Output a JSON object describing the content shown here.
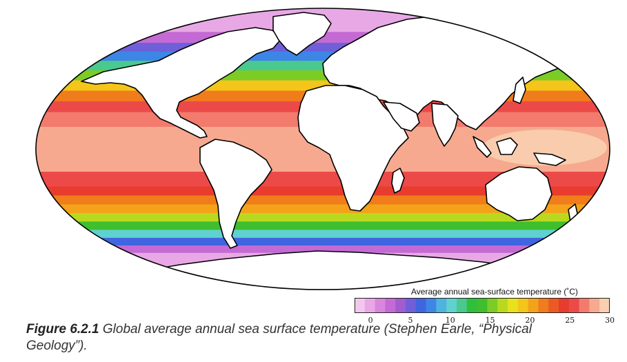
{
  "map": {
    "projection": "mollweide",
    "ocean_bands": [
      {
        "from": -90,
        "to": -66,
        "value": 0
      },
      {
        "from": -66,
        "to": -60,
        "value": 0
      },
      {
        "from": -60,
        "to": -55,
        "value": 3
      },
      {
        "from": -55,
        "to": -50,
        "value": 6
      },
      {
        "from": -50,
        "to": -45,
        "value": 10
      },
      {
        "from": -45,
        "to": -40,
        "value": 14
      },
      {
        "from": -40,
        "to": -35,
        "value": 17
      },
      {
        "from": -35,
        "to": -30,
        "value": 20
      },
      {
        "from": -30,
        "to": -25,
        "value": 22
      },
      {
        "from": -25,
        "to": -20,
        "value": 24
      },
      {
        "from": -20,
        "to": -12,
        "value": 26
      },
      {
        "from": -12,
        "to": 12,
        "value": 28
      },
      {
        "from": 12,
        "to": 20,
        "value": 27
      },
      {
        "from": 20,
        "to": 26,
        "value": 25
      },
      {
        "from": 26,
        "to": 32,
        "value": 22
      },
      {
        "from": 32,
        "to": 38,
        "value": 19
      },
      {
        "from": 38,
        "to": 44,
        "value": 15
      },
      {
        "from": 44,
        "to": 50,
        "value": 11
      },
      {
        "from": 50,
        "to": 56,
        "value": 8
      },
      {
        "from": 56,
        "to": 62,
        "value": 5
      },
      {
        "from": 62,
        "to": 70,
        "value": 2
      },
      {
        "from": 70,
        "to": 90,
        "value": 0
      }
    ],
    "warm_pool_value": 29,
    "land_color": "#ffffff"
  },
  "legend": {
    "title": "Average annual sea-surface temperature (˚C)",
    "min": -2,
    "max": 30,
    "ticks": [
      "0",
      "5",
      "10",
      "15",
      "20",
      "25",
      "30"
    ],
    "tick_values": [
      0,
      5,
      10,
      15,
      20,
      25,
      30
    ],
    "colors": [
      "#f2c8ee",
      "#e8a8e6",
      "#d986dd",
      "#c46ad4",
      "#a35bd0",
      "#6f5fd8",
      "#3f66e0",
      "#3d86e6",
      "#4fb3e0",
      "#5fd1cf",
      "#49c98f",
      "#2fbf3b",
      "#3fbe2e",
      "#7ccc25",
      "#b9d91f",
      "#e8e21c",
      "#f4c51a",
      "#f4a21a",
      "#f07c1c",
      "#eb5a22",
      "#e83c2e",
      "#ec4a49",
      "#f27b6e",
      "#f6a98f",
      "#f9cfb0"
    ]
  },
  "caption": {
    "label": "Figure 6.2.1",
    "text": " Global average annual sea surface temperature (Stephen Earle, “Physical Geology”)."
  }
}
